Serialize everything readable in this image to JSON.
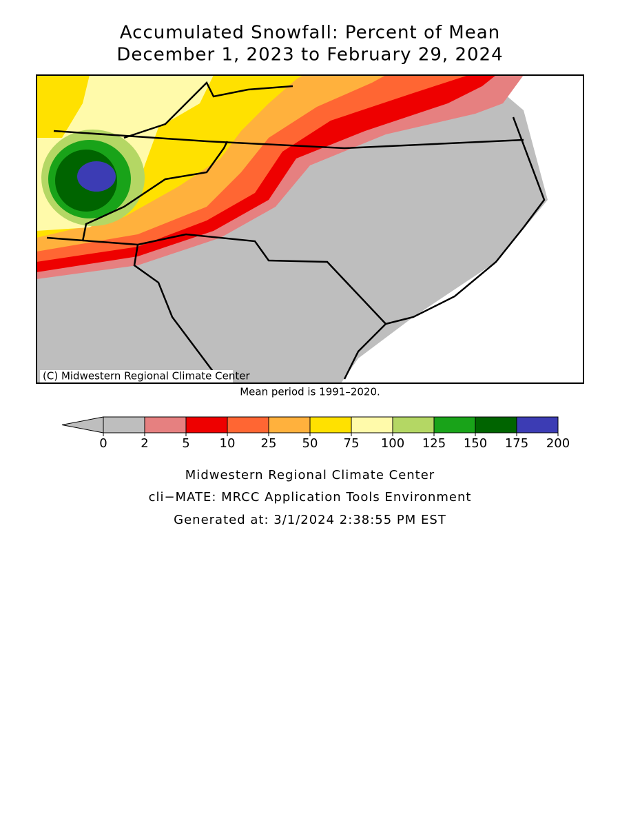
{
  "title": [
    "Accumulated Snowfall: Percent of Mean",
    "December 1, 2023 to February 29, 2024"
  ],
  "map": {
    "copyright": "(C) Midwestern Regional Climate Center",
    "note": "Mean period is 1991–2020."
  },
  "legend": {
    "under_color": "#bebebe",
    "ticks": [
      0,
      2,
      5,
      10,
      25,
      50,
      75,
      100,
      125,
      150,
      175,
      200
    ],
    "colors": [
      "#bebebe",
      "#e68080",
      "#ee0000",
      "#ff6633",
      "#ffb13d",
      "#ffe100",
      "#fffaaa",
      "#b4d764",
      "#19a319",
      "#006400",
      "#3c3cb4"
    ]
  },
  "footer": [
    "Midwestern Regional Climate Center",
    "cli−MATE: MRCC Application Tools Environment",
    "Generated at: 3/1/2024 2:38:55 PM EST"
  ]
}
